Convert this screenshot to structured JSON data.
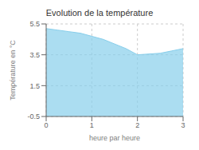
{
  "chart_data": {
    "type": "area",
    "title": "Evolution de la température",
    "xlabel": "heure par heure",
    "ylabel": "Température en °C",
    "x": [
      0,
      0.25,
      0.5,
      0.75,
      1.0,
      1.25,
      1.5,
      1.75,
      2.0,
      2.25,
      2.5,
      2.75,
      3.0
    ],
    "values": [
      5.2,
      5.1,
      5.0,
      4.9,
      4.7,
      4.5,
      4.2,
      3.9,
      3.5,
      3.55,
      3.6,
      3.75,
      3.9
    ],
    "color": "#87CEEB",
    "xlim": [
      0,
      3
    ],
    "ylim": [
      -0.5,
      5.5
    ],
    "xticks": [
      0,
      1,
      2,
      3
    ],
    "yticks": [
      -0.5,
      1.5,
      3.5,
      5.5
    ],
    "grid": true
  }
}
